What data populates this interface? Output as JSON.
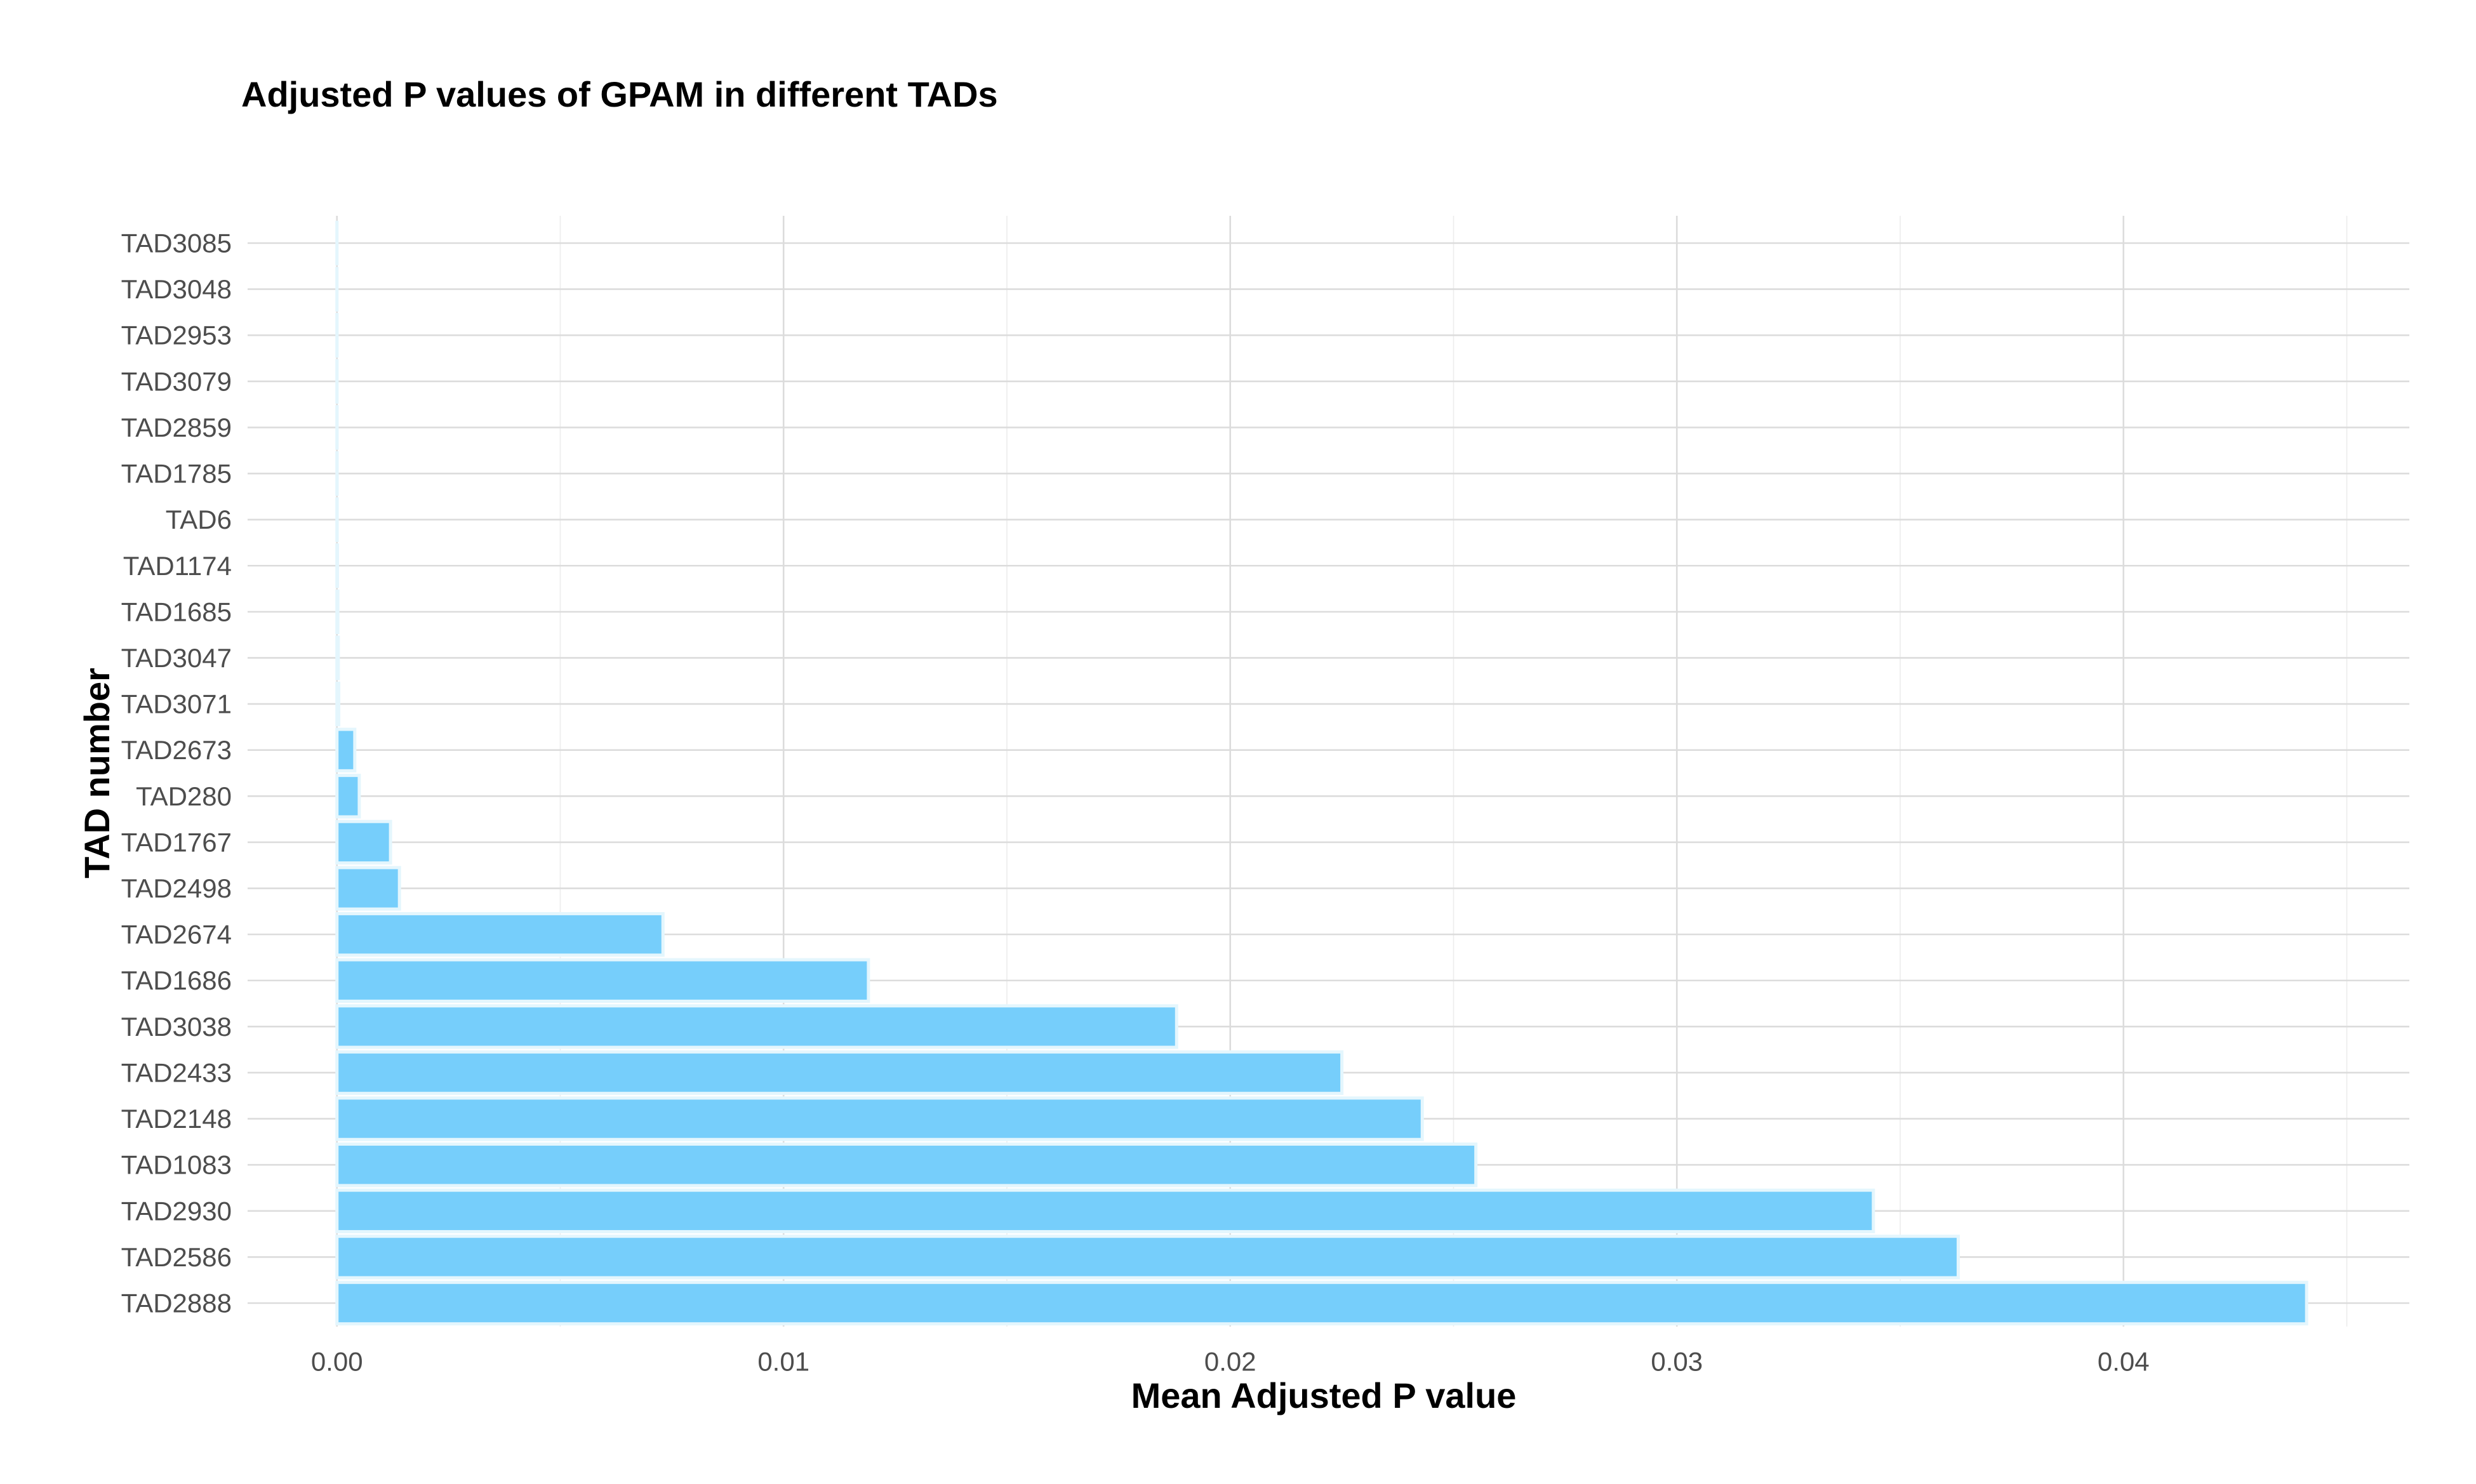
{
  "chart_data": {
    "type": "bar",
    "orientation": "horizontal",
    "title": "Adjusted P values of GPAM in different TADs",
    "xlabel": "Mean Adjusted P value",
    "ylabel": "TAD number",
    "xlim": [
      -0.002,
      0.0464
    ],
    "x_ticks": [
      0.0,
      0.01,
      0.02,
      0.03,
      0.04
    ],
    "x_tick_labels": [
      "0.00",
      "0.01",
      "0.02",
      "0.03",
      "0.04"
    ],
    "x_minor_ticks": [
      0.005,
      0.015,
      0.025,
      0.035,
      0.045
    ],
    "grid": true,
    "legend": "none",
    "bar_color": "#76cefb",
    "bar_edge_color": "#e4f6fd",
    "categories": [
      "TAD3085",
      "TAD3048",
      "TAD2953",
      "TAD3079",
      "TAD2859",
      "TAD1785",
      "TAD6",
      "TAD1174",
      "TAD1685",
      "TAD3047",
      "TAD3071",
      "TAD2673",
      "TAD280",
      "TAD1767",
      "TAD2498",
      "TAD2674",
      "TAD1686",
      "TAD3038",
      "TAD2433",
      "TAD2148",
      "TAD1083",
      "TAD2930",
      "TAD2586",
      "TAD2888"
    ],
    "values": [
      1e-06,
      1e-06,
      2e-06,
      2e-06,
      3e-06,
      4e-06,
      5e-06,
      1e-05,
      2e-05,
      3e-05,
      4e-05,
      0.0004,
      0.0005,
      0.0012,
      0.0014,
      0.0073,
      0.0119,
      0.0188,
      0.0225,
      0.0243,
      0.0255,
      0.0344,
      0.0363,
      0.0441
    ]
  }
}
